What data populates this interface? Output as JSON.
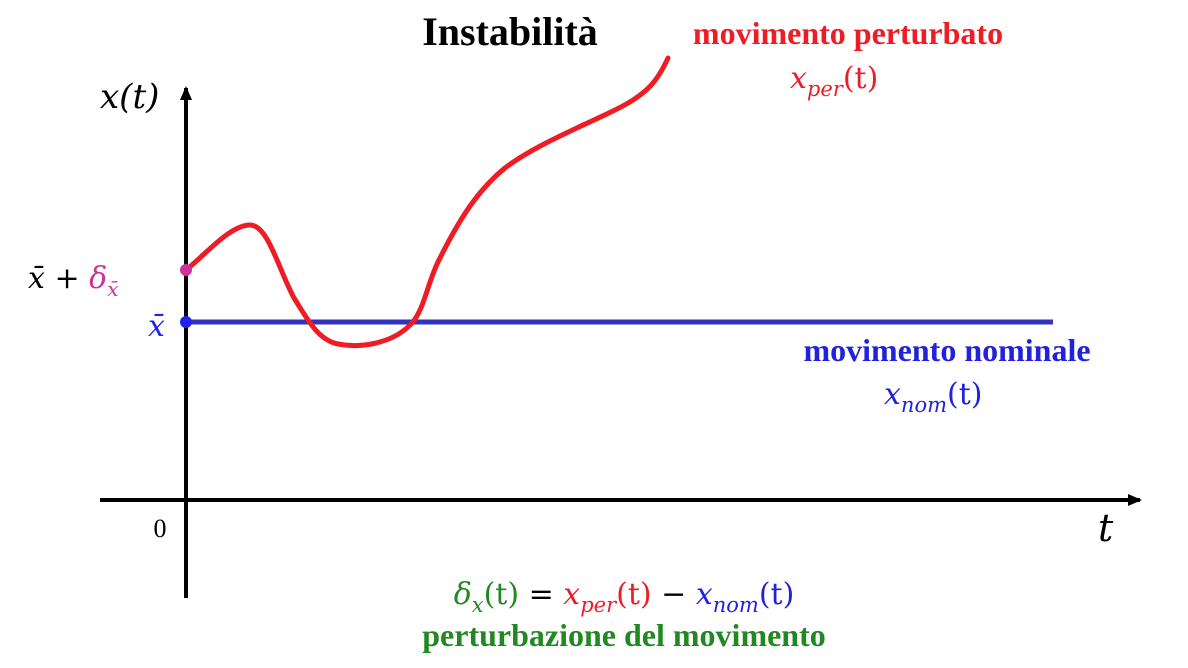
{
  "title": "Instabilità",
  "colors": {
    "perturbed": "#ee1c25",
    "nominal": "#3333bb",
    "initial_perturbed_point": "#cc3399",
    "perturbation": "#228822",
    "axis": "#000000"
  },
  "axes": {
    "y_label": "x(t)",
    "x_label": "t",
    "origin_label": "0"
  },
  "y_ticks": {
    "nominal_label": "x̄",
    "perturbed_base": "x̄ + ",
    "perturbed_delta": "δ",
    "perturbed_delta_sub": "x̄"
  },
  "perturbed": {
    "name": "movimento perturbato",
    "symbol_base": "x",
    "symbol_sub": "per",
    "symbol_arg": "(t)"
  },
  "nominal": {
    "name": "movimento nominale",
    "symbol_base": "x",
    "symbol_sub": "nom",
    "symbol_arg": "(t)"
  },
  "equation": {
    "lhs_base": "δ",
    "lhs_sub": "x",
    "lhs_arg": "(t)",
    "equals": " = ",
    "minus": " − "
  },
  "caption": "perturbazione del movimento"
}
